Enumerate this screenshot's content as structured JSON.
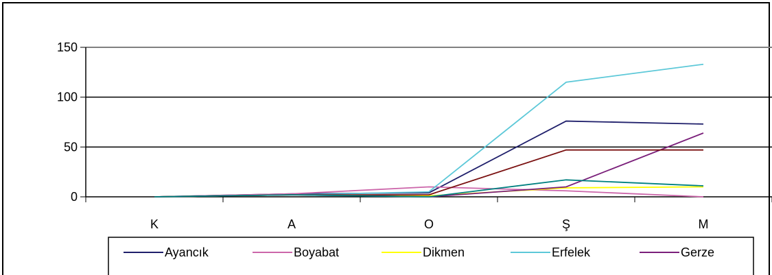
{
  "chart_data": {
    "type": "line",
    "categories": [
      "K",
      "A",
      "O",
      "Ş",
      "M"
    ],
    "ylim": [
      0,
      150
    ],
    "yticks": [
      0,
      50,
      100,
      150
    ],
    "grid": true,
    "legend_position": "bottom",
    "series": [
      {
        "name": "Ayancık",
        "color": "#1f1f6b",
        "values": [
          0,
          3,
          4,
          76,
          73
        ]
      },
      {
        "name": "Boyabat",
        "color": "#cc66aa",
        "values": [
          0,
          3,
          10,
          6,
          0
        ]
      },
      {
        "name": "Dikmen",
        "color": "#ffff00",
        "values": [
          0,
          2,
          1,
          9,
          10
        ]
      },
      {
        "name": "Erfelek",
        "color": "#5cc8d8",
        "values": [
          0,
          2,
          5,
          115,
          133
        ]
      },
      {
        "name": "Gerze",
        "color": "#7a1f7a",
        "values": [
          0,
          2,
          0,
          10,
          64
        ]
      },
      {
        "name": "",
        "color": "#7a1010",
        "values": [
          0,
          2,
          2,
          47,
          47
        ]
      },
      {
        "name": "",
        "color": "#008080",
        "values": [
          0,
          2,
          0,
          17,
          11
        ]
      }
    ]
  }
}
